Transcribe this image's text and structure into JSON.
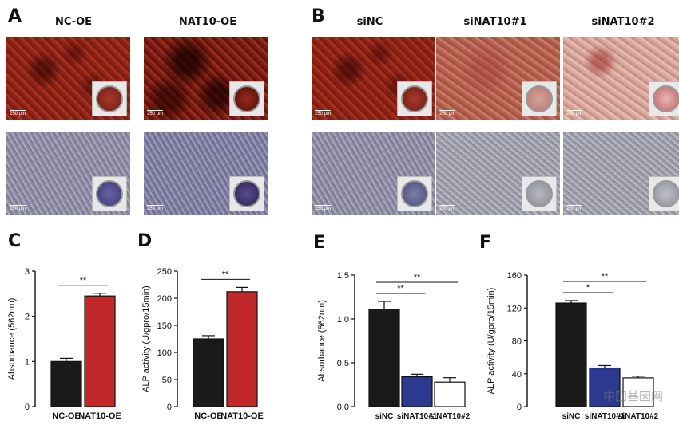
{
  "panels": {
    "A": {
      "label": "A",
      "headers": [
        "NC-OE",
        "NAT10-OE"
      ]
    },
    "B": {
      "label": "B",
      "headers": [
        "siNC",
        "siNAT10#1",
        "siNAT10#2"
      ]
    },
    "C": {
      "label": "C"
    },
    "D": {
      "label": "D"
    },
    "E": {
      "label": "E"
    },
    "F": {
      "label": "F"
    }
  },
  "scale_bar": "250 μm",
  "chart_data": [
    {
      "panel": "C",
      "type": "bar",
      "categories": [
        "NC-OE",
        "NAT10-OE"
      ],
      "values": [
        1.0,
        2.45
      ],
      "errors": [
        0.07,
        0.06
      ],
      "colors": [
        "#1a1a1a",
        "#c0282a"
      ],
      "ylabel": "Absorbance (562nm)",
      "ylim": [
        0,
        3
      ],
      "yticks": [
        "0",
        "1",
        "2",
        "3"
      ],
      "significance": [
        {
          "from": 0,
          "to": 1,
          "label": "**"
        }
      ]
    },
    {
      "panel": "D",
      "type": "bar",
      "categories": [
        "NC-OE",
        "NAT10-OE"
      ],
      "values": [
        125,
        212
      ],
      "errors": [
        6,
        8
      ],
      "colors": [
        "#1a1a1a",
        "#c0282a"
      ],
      "ylabel": "ALP activity (U/gpro/15min)",
      "ylim": [
        0,
        250
      ],
      "yticks": [
        "0",
        "50",
        "100",
        "150",
        "200",
        "250"
      ],
      "significance": [
        {
          "from": 0,
          "to": 1,
          "label": "**"
        }
      ]
    },
    {
      "panel": "E",
      "type": "bar",
      "categories": [
        "siNC",
        "siNAT10#1",
        "siNAT10#2"
      ],
      "values": [
        1.11,
        0.34,
        0.28
      ],
      "errors": [
        0.09,
        0.03,
        0.05
      ],
      "colors": [
        "#1a1a1a",
        "#2b3a8f",
        "#ffffff"
      ],
      "ylabel": "Absorbance (562nm)",
      "ylim": [
        0,
        1.5
      ],
      "yticks": [
        "0.0",
        "0.5",
        "1.0",
        "1.5"
      ],
      "significance": [
        {
          "from": 0,
          "to": 1,
          "label": "**"
        },
        {
          "from": 0,
          "to": 2,
          "label": "**"
        }
      ]
    },
    {
      "panel": "F",
      "type": "bar",
      "categories": [
        "siNC",
        "siNAT10#1",
        "siNAT10#2"
      ],
      "values": [
        126,
        47,
        35
      ],
      "errors": [
        3,
        3,
        2
      ],
      "colors": [
        "#1a1a1a",
        "#2b3a8f",
        "#ffffff"
      ],
      "ylabel": "ALP activity (U/gpro/15min)",
      "ylim": [
        0,
        160
      ],
      "yticks": [
        "0",
        "40",
        "80",
        "120",
        "160"
      ],
      "significance": [
        {
          "from": 0,
          "to": 1,
          "label": "*"
        },
        {
          "from": 0,
          "to": 2,
          "label": "**"
        }
      ]
    }
  ],
  "watermark": "中国基因网"
}
